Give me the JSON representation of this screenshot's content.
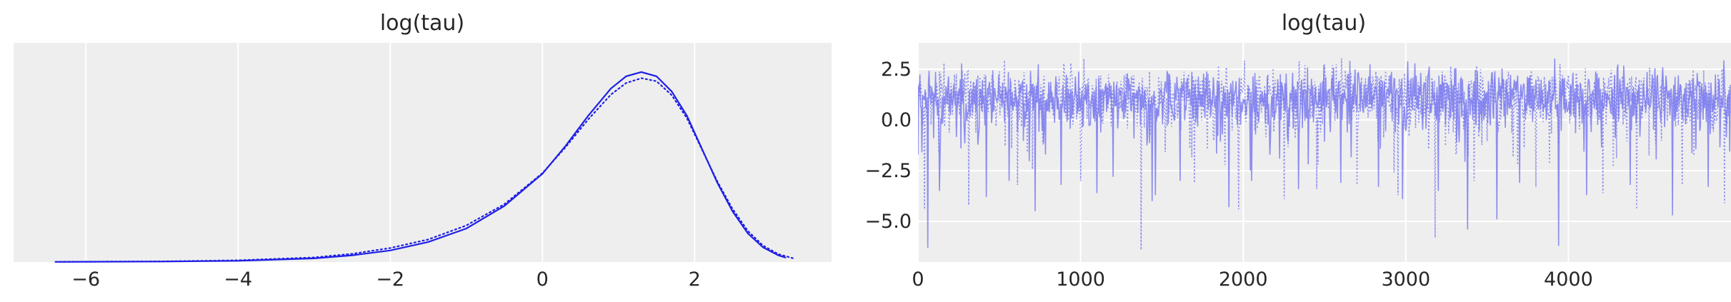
{
  "chart_data": [
    {
      "type": "line",
      "title": "log(tau)",
      "xlabel": "",
      "ylabel": "",
      "xlim": [
        -6.95,
        3.8
      ],
      "ylim": [
        0,
        0.36
      ],
      "x_ticks": [
        -6,
        -4,
        -2,
        0,
        2
      ],
      "x_tick_labels": [
        "−6",
        "−4",
        "−2",
        "0",
        "2"
      ],
      "y_ticks": [],
      "grid": true,
      "legend": "none",
      "series": [
        {
          "style": "solid",
          "color": "#1f1fe6",
          "x": [
            -6.4,
            -5.0,
            -4.0,
            -3.0,
            -2.5,
            -2.0,
            -1.5,
            -1.0,
            -0.5,
            0.0,
            0.3,
            0.6,
            0.9,
            1.1,
            1.3,
            1.5,
            1.7,
            1.9,
            2.1,
            2.3,
            2.5,
            2.7,
            2.9,
            3.1,
            3.2
          ],
          "y": [
            0.0002,
            0.0008,
            0.002,
            0.006,
            0.011,
            0.019,
            0.033,
            0.055,
            0.092,
            0.145,
            0.19,
            0.24,
            0.285,
            0.305,
            0.312,
            0.305,
            0.28,
            0.24,
            0.185,
            0.13,
            0.083,
            0.047,
            0.024,
            0.011,
            0.007
          ]
        },
        {
          "style": "dotted",
          "color": "#1f1fe6",
          "x": [
            -6.4,
            -5.0,
            -4.0,
            -3.0,
            -2.5,
            -2.0,
            -1.5,
            -1.0,
            -0.5,
            0.0,
            0.3,
            0.6,
            0.9,
            1.1,
            1.3,
            1.5,
            1.7,
            1.9,
            2.1,
            2.3,
            2.5,
            2.7,
            2.9,
            3.1,
            3.3
          ],
          "y": [
            0.0003,
            0.001,
            0.0028,
            0.0075,
            0.0135,
            0.023,
            0.037,
            0.06,
            0.095,
            0.146,
            0.188,
            0.234,
            0.275,
            0.294,
            0.302,
            0.297,
            0.274,
            0.236,
            0.184,
            0.132,
            0.087,
            0.051,
            0.027,
            0.013,
            0.006
          ]
        }
      ]
    },
    {
      "type": "line",
      "title": "log(tau)",
      "xlabel": "",
      "ylabel": "",
      "xlim": [
        0,
        5000
      ],
      "ylim": [
        -7,
        3.8
      ],
      "x_ticks": [
        0,
        1000,
        2000,
        3000,
        4000
      ],
      "x_tick_labels": [
        "0",
        "1000",
        "2000",
        "3000",
        "4000"
      ],
      "y_ticks": [
        2.5,
        0.0,
        -2.5,
        -5.0
      ],
      "y_tick_labels": [
        "2.5",
        "0.0",
        "−2.5",
        "−5.0"
      ],
      "grid": true,
      "legend": "none",
      "trace_summary": {
        "draws": 5000,
        "chains": 2,
        "center": 1.1,
        "typical_range": [
          -1.3,
          2.6
        ],
        "max": 3.2,
        "min": -6.4
      },
      "series": [
        {
          "style": "solid",
          "color": "#7b7bf0",
          "spikes": [
            [
              60,
              -6.3
            ],
            [
              130,
              -3.5
            ],
            [
              420,
              -3.8
            ],
            [
              560,
              -3.0
            ],
            [
              720,
              -4.5
            ],
            [
              880,
              -3.2
            ],
            [
              1100,
              -3.6
            ],
            [
              1200,
              -2.8
            ],
            [
              1440,
              -4.0
            ],
            [
              1460,
              -3.7
            ],
            [
              1610,
              -3.0
            ],
            [
              1910,
              -4.3
            ],
            [
              2050,
              -3.0
            ],
            [
              2340,
              -3.4
            ],
            [
              2600,
              -3.1
            ],
            [
              2830,
              -3.3
            ],
            [
              2980,
              -3.9
            ],
            [
              3200,
              -3.5
            ],
            [
              3380,
              -5.4
            ],
            [
              3560,
              -4.9
            ],
            [
              3700,
              -3.1
            ],
            [
              3940,
              -6.2
            ],
            [
              4110,
              -3.7
            ],
            [
              4380,
              -3.2
            ],
            [
              4640,
              -4.7
            ],
            [
              4860,
              -3.3
            ]
          ]
        },
        {
          "style": "dotted",
          "color": "#7b7bf0",
          "spikes": [
            [
              40,
              -4.4
            ],
            [
              310,
              -4.2
            ],
            [
              610,
              -3.2
            ],
            [
              1000,
              -3.0
            ],
            [
              1370,
              -6.4
            ],
            [
              1700,
              -3.1
            ],
            [
              1970,
              -4.4
            ],
            [
              2250,
              -3.9
            ],
            [
              2450,
              -3.4
            ],
            [
              2700,
              -3.2
            ],
            [
              2950,
              -3.7
            ],
            [
              3180,
              -5.8
            ],
            [
              3420,
              -3.0
            ],
            [
              3800,
              -3.3
            ],
            [
              4210,
              -3.6
            ],
            [
              4420,
              -4.4
            ],
            [
              4700,
              -3.2
            ],
            [
              4960,
              -4.1
            ]
          ]
        }
      ]
    }
  ]
}
